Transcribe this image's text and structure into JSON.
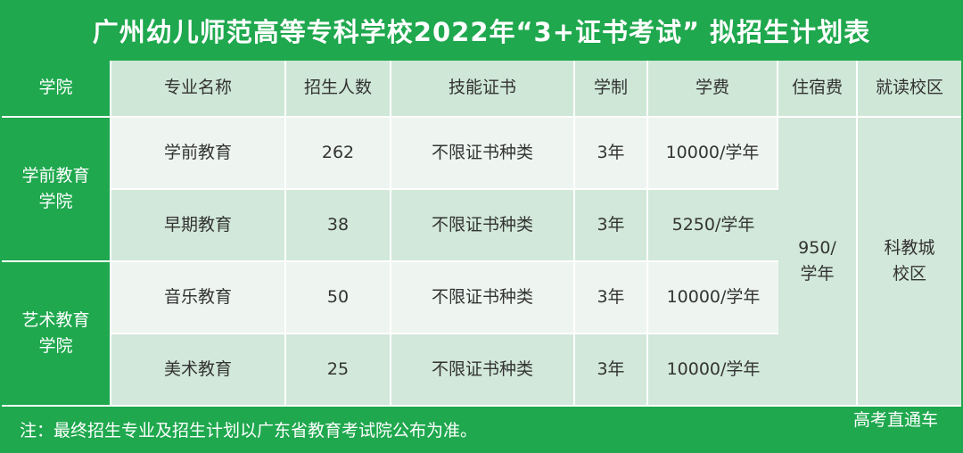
{
  "title": "广州幼儿师范高等专科学校2022年“3+证书考试” 拟招生计划表",
  "headers": {
    "college": "学院",
    "major": "专业名称",
    "enrollment": "招生人数",
    "certificate": "技能证书",
    "duration": "学制",
    "tuition": "学费",
    "accommodation": "住宿费",
    "campus": "就读校区"
  },
  "colleges": [
    {
      "name_line1": "学前教育",
      "name_line2": "学院"
    },
    {
      "name_line1": "艺术教育",
      "name_line2": "学院"
    }
  ],
  "rows": [
    {
      "major": "学前教育",
      "enrollment": "262",
      "certificate": "不限证书种类",
      "duration": "3年",
      "tuition": "10000/学年"
    },
    {
      "major": "早期教育",
      "enrollment": "38",
      "certificate": "不限证书种类",
      "duration": "3年",
      "tuition": "5250/学年"
    },
    {
      "major": "音乐教育",
      "enrollment": "50",
      "certificate": "不限证书种类",
      "duration": "3年",
      "tuition": "10000/学年"
    },
    {
      "major": "美术教育",
      "enrollment": "25",
      "certificate": "不限证书种类",
      "duration": "3年",
      "tuition": "10000/学年"
    }
  ],
  "shared": {
    "accommodation_line1": "950/",
    "accommodation_line2": "学年",
    "campus_line1": "科教城",
    "campus_line2": "校区"
  },
  "footer": {
    "note": "注：最终招生专业及招生计划以广东省教育考试院公布为准。",
    "watermark": "高考直通车"
  },
  "colors": {
    "brand_green": "#1fa84e",
    "header_cell": "#cfe7d7",
    "row_light": "#eef5f0",
    "row_dark": "#d2e8da"
  }
}
